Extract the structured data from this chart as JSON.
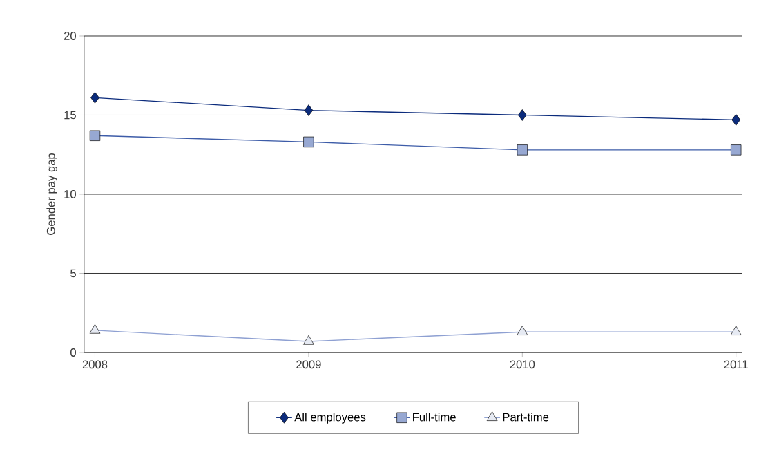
{
  "chart_data": {
    "type": "line",
    "ylabel": "Gender pay gap",
    "x": [
      2008,
      2009,
      2010,
      2011
    ],
    "series": [
      {
        "name": "All employees",
        "color": "#0b2b7c",
        "marker": "diamond",
        "values": [
          16.1,
          15.3,
          15.0,
          14.7
        ]
      },
      {
        "name": "Full-time",
        "color": "#3d5ca8",
        "marker": "square",
        "values": [
          13.7,
          13.3,
          12.8,
          12.8
        ]
      },
      {
        "name": "Part-time",
        "color": "#8ea0d2",
        "marker": "triangle",
        "values": [
          1.4,
          0.7,
          1.3,
          1.3
        ]
      }
    ],
    "xlim": [
      2007.95,
      2011.03
    ],
    "xticks": [
      2008,
      2009,
      2010,
      2011
    ],
    "ylim": [
      0,
      20
    ],
    "yticks": [
      0,
      5,
      10,
      15,
      20
    ],
    "grid": "y",
    "legend": "bottom",
    "line_style": "solid"
  }
}
